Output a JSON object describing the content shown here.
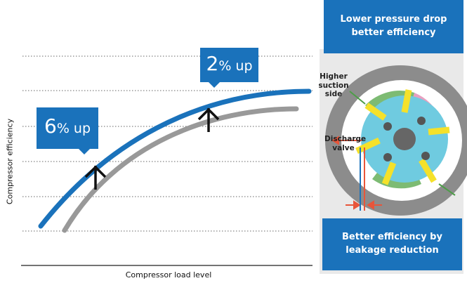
{
  "chart": {
    "y_axis_label": "Compressor efficiency",
    "x_axis_label": "Compressor load level",
    "callouts": [
      {
        "number": "6",
        "suffix": "% up"
      },
      {
        "number": "2",
        "suffix": "% up"
      }
    ]
  },
  "diagram": {
    "top_banner": "Lower pressure drop better efficiency",
    "suction_label": "Higher suction side",
    "valve_label": "Discharge valve",
    "bottom_banner": "Better efficiency by leakage reduction"
  }
}
